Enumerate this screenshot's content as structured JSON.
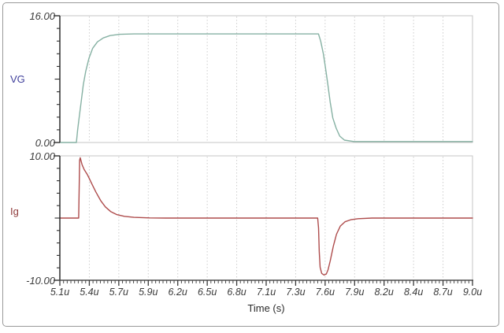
{
  "window": {
    "background": "#ffffff",
    "border_color": "#9a9a9a"
  },
  "xaxis": {
    "label": "Time (s)",
    "xlim_us": [
      5.1,
      9.0
    ],
    "tick_labels": [
      "5.1u",
      "5.4u",
      "5.7u",
      "5.9u",
      "6.2u",
      "6.5u",
      "6.8u",
      "7.1u",
      "7.3u",
      "7.6u",
      "7.9u",
      "8.2u",
      "8.4u",
      "8.7u",
      "9.0u"
    ],
    "minor_divisions_per_major": 8
  },
  "chart_data": [
    {
      "type": "line",
      "title": "",
      "ylabel": "VG",
      "ylabel_color": "#3f3f9b",
      "ylim": [
        0,
        16
      ],
      "ytick_labels": {
        "top": "16.00",
        "bottom": "0.00"
      },
      "grid": "vertical-dotted",
      "series": [
        {
          "name": "VG",
          "color": "#86b1a3",
          "points": [
            [
              5.1,
              0
            ],
            [
              5.256,
              0
            ],
            [
              5.268,
              1.6
            ],
            [
              5.284,
              3.3
            ],
            [
              5.3,
              5.0
            ],
            [
              5.322,
              7.3
            ],
            [
              5.345,
              9.0
            ],
            [
              5.375,
              10.6
            ],
            [
              5.41,
              11.9
            ],
            [
              5.455,
              12.7
            ],
            [
              5.51,
              13.2
            ],
            [
              5.575,
              13.5
            ],
            [
              5.665,
              13.65
            ],
            [
              5.8,
              13.7
            ],
            [
              7.544,
              13.7
            ],
            [
              7.565,
              12.8
            ],
            [
              7.59,
              11.2
            ],
            [
              7.61,
              9.5
            ],
            [
              7.632,
              7.4
            ],
            [
              7.655,
              5.1
            ],
            [
              7.68,
              3.1
            ],
            [
              7.712,
              1.8
            ],
            [
              7.745,
              0.8
            ],
            [
              7.79,
              0.3
            ],
            [
              7.88,
              0.12
            ],
            [
              9.0,
              0.12
            ]
          ]
        }
      ]
    },
    {
      "type": "line",
      "title": "",
      "ylabel": "Ig",
      "ylabel_color": "#8f3b3b",
      "ylim": [
        -10,
        10
      ],
      "ytick_labels": {
        "top": "10.00",
        "bottom": "-10.00"
      },
      "grid": "vertical-dotted",
      "series": [
        {
          "name": "Ig",
          "color": "#ae4c4c",
          "points": [
            [
              5.1,
              0
            ],
            [
              5.278,
              0
            ],
            [
              5.282,
              4.5
            ],
            [
              5.287,
              9.3
            ],
            [
              5.293,
              9.7
            ],
            [
              5.31,
              8.6
            ],
            [
              5.33,
              7.8
            ],
            [
              5.36,
              7.0
            ],
            [
              5.38,
              6.3
            ],
            [
              5.405,
              5.4
            ],
            [
              5.44,
              4.2
            ],
            [
              5.486,
              2.8
            ],
            [
              5.53,
              1.8
            ],
            [
              5.58,
              1.05
            ],
            [
              5.64,
              0.55
            ],
            [
              5.71,
              0.28
            ],
            [
              5.8,
              0.12
            ],
            [
              5.95,
              0.03
            ],
            [
              6.1,
              0
            ],
            [
              7.537,
              0
            ],
            [
              7.545,
              -1.6
            ],
            [
              7.552,
              -5.4
            ],
            [
              7.56,
              -7.9
            ],
            [
              7.575,
              -8.9
            ],
            [
              7.596,
              -9.15
            ],
            [
              7.618,
              -9.0
            ],
            [
              7.635,
              -8.3
            ],
            [
              7.655,
              -6.9
            ],
            [
              7.685,
              -4.5
            ],
            [
              7.715,
              -2.6
            ],
            [
              7.75,
              -1.3
            ],
            [
              7.795,
              -0.6
            ],
            [
              7.85,
              -0.27
            ],
            [
              7.92,
              -0.1
            ],
            [
              8.05,
              0
            ],
            [
              9.0,
              0
            ]
          ]
        }
      ]
    }
  ]
}
